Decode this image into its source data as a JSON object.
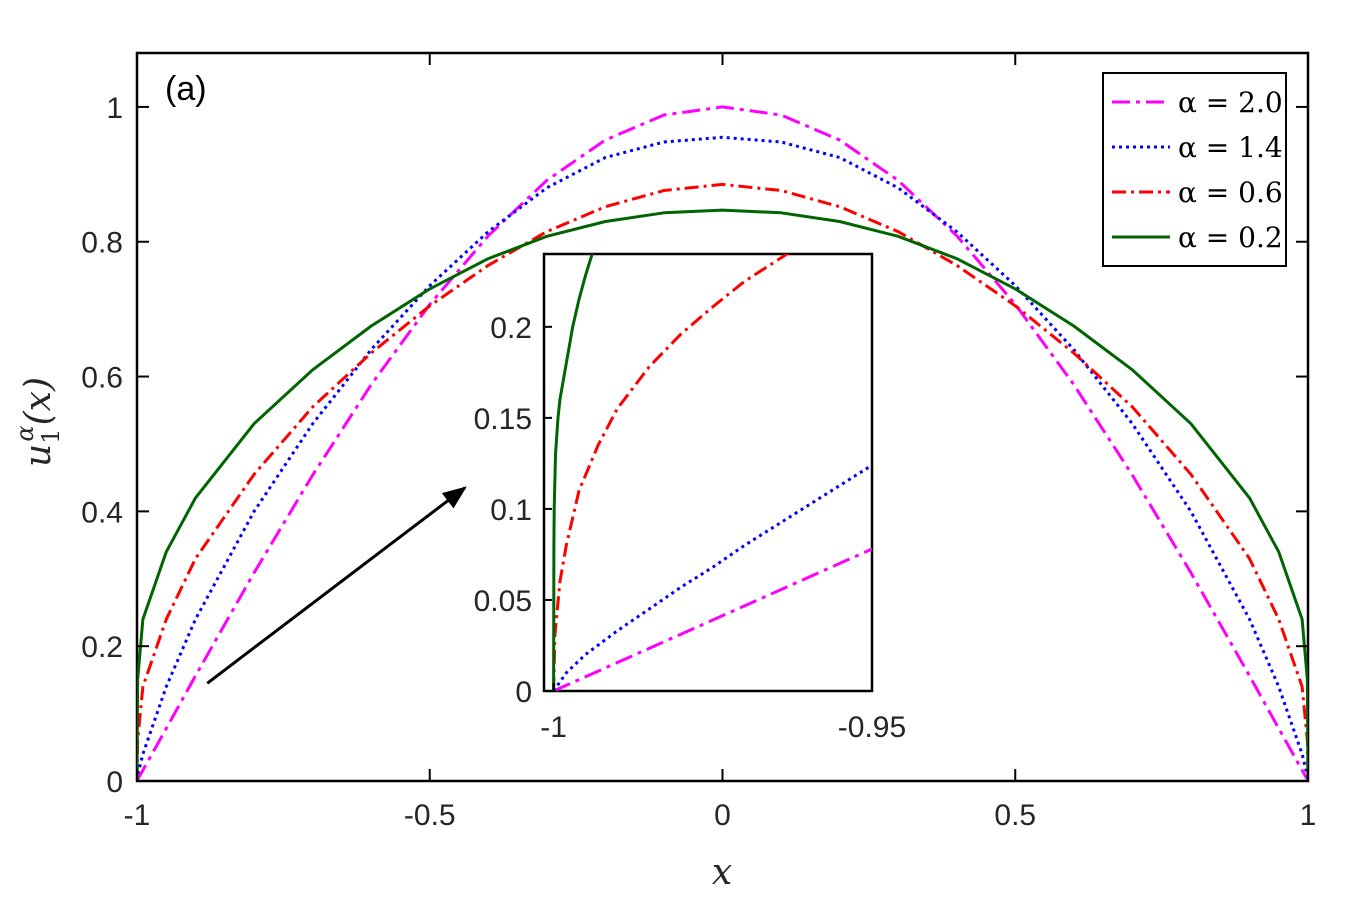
{
  "chart_data": [
    {
      "id": "main",
      "type": "line",
      "panel_label": "(a)",
      "xlabel": "x",
      "ylabel_base": "u",
      "ylabel_sub": "1",
      "ylabel_sup": "α",
      "ylabel_arg": "(x)",
      "xlim": [
        -1,
        1
      ],
      "ylim": [
        0,
        1.08
      ],
      "xticks": [
        -1,
        -0.5,
        0,
        0.5,
        1
      ],
      "xtick_labels": [
        "-1",
        "-0.5",
        "0",
        "0.5",
        "1"
      ],
      "yticks": [
        0,
        0.2,
        0.4,
        0.6,
        0.8,
        1
      ],
      "ytick_labels": [
        "0",
        "0.2",
        "0.4",
        "0.6",
        "0.8",
        "1"
      ],
      "legend_position": "top-right",
      "grid": false,
      "x": [
        -1,
        -0.999,
        -0.99,
        -0.95,
        -0.9,
        -0.8,
        -0.7,
        -0.6,
        -0.5,
        -0.4,
        -0.3,
        -0.2,
        -0.1,
        0,
        0.1,
        0.2,
        0.3,
        0.4,
        0.5,
        0.6,
        0.7,
        0.8,
        0.9,
        0.95,
        0.99,
        0.999,
        1
      ],
      "series": [
        {
          "name": "α = 2.0",
          "label": "α = 2.0",
          "color": "#ff00ff",
          "dash": "18 6 4 6",
          "values": [
            0,
            0.002,
            0.016,
            0.078,
            0.156,
            0.309,
            0.454,
            0.588,
            0.707,
            0.809,
            0.891,
            0.951,
            0.988,
            1.0,
            0.988,
            0.951,
            0.891,
            0.809,
            0.707,
            0.588,
            0.454,
            0.309,
            0.156,
            0.078,
            0.016,
            0.002,
            0
          ]
        },
        {
          "name": "α = 1.4",
          "label": "α = 1.4",
          "color": "#0000ff",
          "dash": "3 4",
          "values": [
            0,
            0.008,
            0.04,
            0.14,
            0.24,
            0.4,
            0.53,
            0.64,
            0.735,
            0.815,
            0.88,
            0.925,
            0.948,
            0.955,
            0.948,
            0.925,
            0.88,
            0.815,
            0.735,
            0.64,
            0.53,
            0.4,
            0.24,
            0.14,
            0.04,
            0.008,
            0
          ]
        },
        {
          "name": "α = 0.6",
          "label": "α = 0.6",
          "color": "#ff0000",
          "dash": "14 5 3 5",
          "values": [
            0,
            0.06,
            0.14,
            0.24,
            0.33,
            0.455,
            0.555,
            0.635,
            0.705,
            0.765,
            0.815,
            0.852,
            0.876,
            0.885,
            0.876,
            0.852,
            0.815,
            0.765,
            0.705,
            0.635,
            0.555,
            0.455,
            0.33,
            0.24,
            0.14,
            0.06,
            0
          ]
        },
        {
          "name": "α = 0.2",
          "label": "α = 0.2",
          "color": "#006400",
          "dash": "",
          "values": [
            0,
            0.15,
            0.24,
            0.34,
            0.42,
            0.53,
            0.61,
            0.675,
            0.73,
            0.775,
            0.808,
            0.83,
            0.843,
            0.847,
            0.843,
            0.83,
            0.808,
            0.775,
            0.73,
            0.675,
            0.61,
            0.53,
            0.42,
            0.34,
            0.24,
            0.15,
            0
          ]
        }
      ],
      "annotations": [
        {
          "type": "arrow",
          "from": [
            -0.88,
            0.145
          ],
          "to": [
            -0.44,
            0.435
          ]
        }
      ]
    },
    {
      "id": "inset",
      "type": "line",
      "xlim": [
        -1.0015,
        -0.95
      ],
      "ylim": [
        0,
        0.24
      ],
      "xticks": [
        -1,
        -0.95
      ],
      "xtick_labels": [
        "-1",
        "-0.95"
      ],
      "yticks": [
        0,
        0.05,
        0.1,
        0.15,
        0.2
      ],
      "ytick_labels": [
        "0",
        "0.05",
        "0.1",
        "0.15",
        "0.2"
      ],
      "grid": false,
      "series": [
        {
          "name": "α = 2.0",
          "color": "#ff00ff",
          "dash": "18 6 4 6",
          "x": [
            -1,
            -0.95
          ],
          "values": [
            0,
            0.078
          ]
        },
        {
          "name": "α = 1.4",
          "color": "#0000ff",
          "dash": "3 4",
          "x": [
            -1,
            -0.998,
            -0.995,
            -0.99,
            -0.985,
            -0.98,
            -0.975,
            -0.97,
            -0.965,
            -0.96,
            -0.955,
            -0.95
          ],
          "values": [
            0,
            0.01,
            0.02,
            0.033,
            0.045,
            0.057,
            0.068,
            0.08,
            0.091,
            0.102,
            0.113,
            0.124
          ]
        },
        {
          "name": "α = 0.6",
          "color": "#ff0000",
          "dash": "14 5 3 5",
          "x": [
            -1,
            -0.9998,
            -0.999,
            -0.998,
            -0.996,
            -0.993,
            -0.99,
            -0.985,
            -0.98,
            -0.975,
            -0.97,
            -0.966,
            -0.962
          ],
          "values": [
            0,
            0.03,
            0.06,
            0.08,
            0.11,
            0.135,
            0.155,
            0.178,
            0.196,
            0.211,
            0.225,
            0.234,
            0.243
          ]
        },
        {
          "name": "α = 0.2",
          "color": "#006400",
          "dash": "",
          "x": [
            -1,
            -0.99995,
            -0.9999,
            -0.9997,
            -0.9993,
            -0.999,
            -0.998,
            -0.997,
            -0.996,
            -0.995,
            -0.9935
          ],
          "values": [
            0,
            0.08,
            0.1,
            0.13,
            0.15,
            0.16,
            0.18,
            0.2,
            0.215,
            0.228,
            0.245
          ]
        }
      ]
    }
  ]
}
